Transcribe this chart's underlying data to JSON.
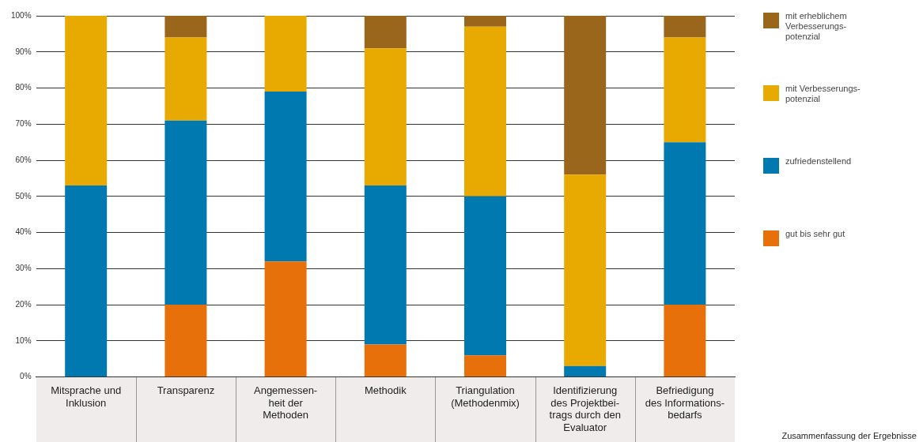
{
  "chart_data": {
    "type": "bar",
    "stacked": true,
    "categories": [
      "Mitsprache und\nInklusion",
      "Transparenz",
      "Angemessen-\nheit der\nMethoden",
      "Methodik",
      "Triangulation\n(Methodenmix)",
      "Identifizierung\ndes Projektbei-\ntrags durch den\nEvaluator",
      "Befriedigung\ndes Informations-\nbedarfs"
    ],
    "series": [
      {
        "name": "gut bis sehr gut",
        "color": "#e8700a",
        "values": [
          0,
          20,
          32,
          9,
          6,
          0,
          20
        ]
      },
      {
        "name": "zufriedenstellend",
        "color": "#0079b0",
        "values": [
          53,
          51,
          47,
          44,
          44,
          3,
          45
        ]
      },
      {
        "name": "mit Verbesserungs-\npotenzial",
        "color": "#e8a900",
        "values": [
          47,
          23,
          21,
          38,
          47,
          53,
          29
        ]
      },
      {
        "name": "mit erheblichem\nVerbesserungs-\npotenzial",
        "color": "#99661c",
        "values": [
          0,
          6,
          0,
          9,
          3,
          44,
          6
        ]
      }
    ],
    "ylim": [
      0,
      100
    ],
    "yticks": [
      {
        "value": 0,
        "label": "0%"
      },
      {
        "value": 10,
        "label": "10%"
      },
      {
        "value": 20,
        "label": "20%"
      },
      {
        "value": 30,
        "label": "30%"
      },
      {
        "value": 40,
        "label": "40%"
      },
      {
        "value": 50,
        "label": "50%"
      },
      {
        "value": 60,
        "label": "60%"
      },
      {
        "value": 70,
        "label": "70%"
      },
      {
        "value": 80,
        "label": "80%"
      },
      {
        "value": 90,
        "label": "90%"
      },
      {
        "value": 100,
        "label": "100%"
      }
    ],
    "grid": "y",
    "legend": "right",
    "annotations": [
      "Zusammenfassung der Ergebnisse"
    ]
  }
}
